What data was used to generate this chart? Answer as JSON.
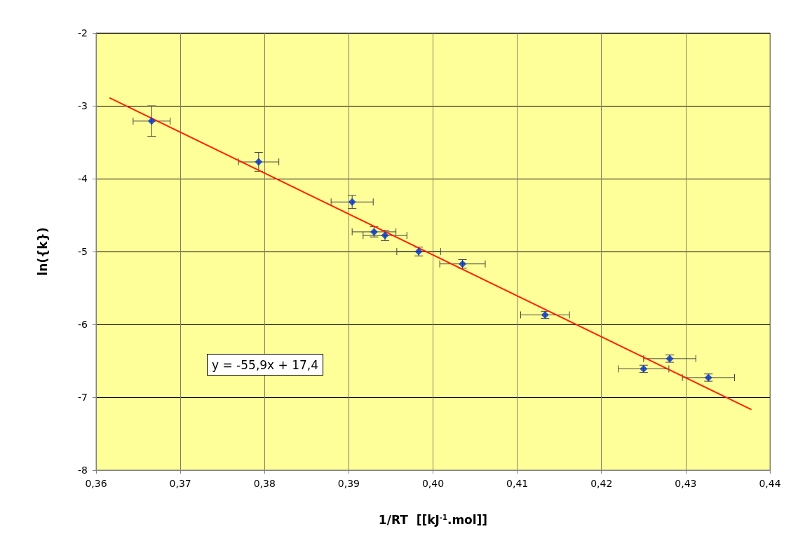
{
  "chart_data": {
    "type": "scatter",
    "xlabel": "1/RT  [[kJ$^{-1}$.mol]]",
    "ylabel": "ln({k})",
    "xlim": [
      0.36,
      0.44
    ],
    "xticks": [
      {
        "value": 0.36,
        "label": "0,36"
      },
      {
        "value": 0.37,
        "label": "0,37"
      },
      {
        "value": 0.38,
        "label": "0,38"
      },
      {
        "value": 0.39,
        "label": "0,39"
      },
      {
        "value": 0.4,
        "label": "0,40"
      },
      {
        "value": 0.41,
        "label": "0,41"
      },
      {
        "value": 0.42,
        "label": "0,42"
      },
      {
        "value": 0.43,
        "label": "0,43"
      },
      {
        "value": 0.44,
        "label": "0,44"
      }
    ],
    "ylim": [
      -8,
      -2
    ],
    "yticks": [
      -8,
      -7,
      -6,
      -5,
      -4,
      -3,
      -2
    ],
    "grid": true,
    "series": [
      {
        "type": "scatter",
        "color": "#0033cc",
        "marker": "diamond",
        "x": [
          0.3666,
          0.3793,
          0.3904,
          0.393,
          0.3943,
          0.3983,
          0.4035,
          0.4133,
          0.425,
          0.4281,
          0.4327
        ],
        "values": [
          -3.21,
          -3.77,
          -4.32,
          -4.73,
          -4.78,
          -5.0,
          -5.17,
          -5.87,
          -6.61,
          -6.47,
          -6.73
        ],
        "errors": [
          0.21,
          0.13,
          0.09,
          0.07,
          0.07,
          0.06,
          0.06,
          0.05,
          0.05,
          0.05,
          0.05
        ],
        "xerrors": [
          0.0022,
          0.0024,
          0.0025,
          0.0026,
          0.0026,
          0.0026,
          0.0027,
          0.0029,
          0.003,
          0.0031,
          0.0031
        ]
      },
      {
        "type": "line",
        "color": "#ff2200",
        "marker": "none",
        "x": [
          0.3616,
          0.4378
        ],
        "values": [
          -2.89,
          -7.17
        ]
      }
    ],
    "annotations": [
      "y = -55,9x + 17,4"
    ]
  }
}
